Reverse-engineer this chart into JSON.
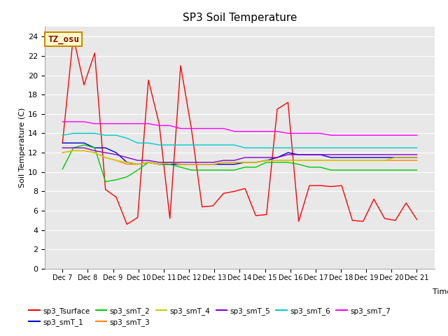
{
  "title": "SP3 Soil Temperature",
  "xlabel": "Time",
  "ylabel": "Soil Temperature (C)",
  "ylim": [
    0,
    25
  ],
  "yticks": [
    0,
    2,
    4,
    6,
    8,
    10,
    12,
    14,
    16,
    18,
    20,
    22,
    24
  ],
  "background_color": "#e8e8e8",
  "annotation_text": "TZ_osu",
  "annotation_bg": "#ffffcc",
  "annotation_border": "#cc8800",
  "x_labels": [
    "Dec 7",
    "Dec 8",
    "Dec 9",
    "Dec 10",
    "Dec 11",
    "Dec 12",
    "Dec 13",
    "Dec 14",
    "Dec 15",
    "Dec 16",
    "Dec 17",
    "Dec 18",
    "Dec 19",
    "Dec 20",
    "Dec 21"
  ],
  "series": {
    "sp3_Tsurface": {
      "color": "#ff0000",
      "data": [
        13.0,
        24.0,
        19.0,
        22.3,
        8.2,
        7.4,
        4.6,
        5.3,
        19.5,
        15.0,
        5.2,
        21.0,
        14.5,
        6.4,
        6.5,
        7.8,
        8.0,
        8.3,
        5.5,
        5.6,
        16.5,
        17.2,
        4.9,
        8.6,
        8.6,
        8.5,
        8.6,
        5.0,
        4.9,
        7.2,
        5.2,
        5.0,
        6.8,
        5.1
      ]
    },
    "sp3_smT_1": {
      "color": "#0000cc",
      "data": [
        13.0,
        13.0,
        13.0,
        12.5,
        12.5,
        12.0,
        11.0,
        10.8,
        11.0,
        10.8,
        10.8,
        10.8,
        10.8,
        10.8,
        10.8,
        10.8,
        10.8,
        11.0,
        11.0,
        11.2,
        11.5,
        12.0,
        11.8,
        11.8,
        11.8,
        11.5,
        11.5,
        11.5,
        11.5,
        11.5,
        11.5,
        11.5,
        11.5,
        11.5
      ]
    },
    "sp3_smT_2": {
      "color": "#00cc00",
      "data": [
        10.3,
        12.5,
        12.8,
        12.5,
        9.0,
        9.2,
        9.5,
        10.2,
        11.0,
        10.8,
        10.8,
        10.5,
        10.2,
        10.2,
        10.2,
        10.2,
        10.2,
        10.5,
        10.5,
        11.0,
        11.0,
        11.0,
        10.8,
        10.5,
        10.5,
        10.2,
        10.2,
        10.2,
        10.2,
        10.2,
        10.2,
        10.2,
        10.2,
        10.2
      ]
    },
    "sp3_smT_3": {
      "color": "#ff8800",
      "data": [
        12.0,
        12.2,
        12.2,
        12.0,
        11.5,
        11.2,
        10.8,
        10.8,
        11.0,
        10.8,
        11.0,
        10.8,
        10.8,
        10.8,
        10.8,
        11.0,
        11.0,
        11.0,
        11.0,
        11.2,
        11.2,
        11.2,
        11.2,
        11.2,
        11.2,
        11.2,
        11.2,
        11.2,
        11.2,
        11.2,
        11.2,
        11.2,
        11.2,
        11.2
      ]
    },
    "sp3_smT_4": {
      "color": "#cccc00",
      "data": [
        12.0,
        12.2,
        12.2,
        12.0,
        11.5,
        11.2,
        11.0,
        10.8,
        11.0,
        10.8,
        11.0,
        10.8,
        10.8,
        10.8,
        10.8,
        11.0,
        11.0,
        11.0,
        11.0,
        11.2,
        11.2,
        11.2,
        11.2,
        11.2,
        11.2,
        11.2,
        11.2,
        11.2,
        11.2,
        11.2,
        11.2,
        11.5,
        11.5,
        11.5
      ]
    },
    "sp3_smT_5": {
      "color": "#8800cc",
      "data": [
        12.5,
        12.5,
        12.5,
        12.2,
        12.0,
        11.8,
        11.5,
        11.2,
        11.2,
        11.0,
        11.0,
        11.0,
        11.0,
        11.0,
        11.0,
        11.2,
        11.2,
        11.5,
        11.5,
        11.5,
        11.5,
        11.8,
        11.8,
        11.8,
        11.8,
        11.8,
        11.8,
        11.8,
        11.8,
        11.8,
        11.8,
        11.8,
        11.8,
        11.8
      ]
    },
    "sp3_smT_6": {
      "color": "#00cccc",
      "data": [
        13.8,
        14.0,
        14.0,
        14.0,
        13.8,
        13.8,
        13.5,
        13.0,
        13.0,
        12.8,
        12.8,
        12.8,
        12.8,
        12.8,
        12.8,
        12.8,
        12.8,
        12.5,
        12.5,
        12.5,
        12.5,
        12.5,
        12.5,
        12.5,
        12.5,
        12.5,
        12.5,
        12.5,
        12.5,
        12.5,
        12.5,
        12.5,
        12.5,
        12.5
      ]
    },
    "sp3_smT_7": {
      "color": "#ff00ff",
      "data": [
        15.2,
        15.2,
        15.2,
        15.0,
        15.0,
        15.0,
        15.0,
        15.0,
        15.0,
        14.8,
        14.8,
        14.5,
        14.5,
        14.5,
        14.5,
        14.5,
        14.2,
        14.2,
        14.2,
        14.2,
        14.2,
        14.0,
        14.0,
        14.0,
        14.0,
        13.8,
        13.8,
        13.8,
        13.8,
        13.8,
        13.8,
        13.8,
        13.8,
        13.8
      ]
    }
  }
}
